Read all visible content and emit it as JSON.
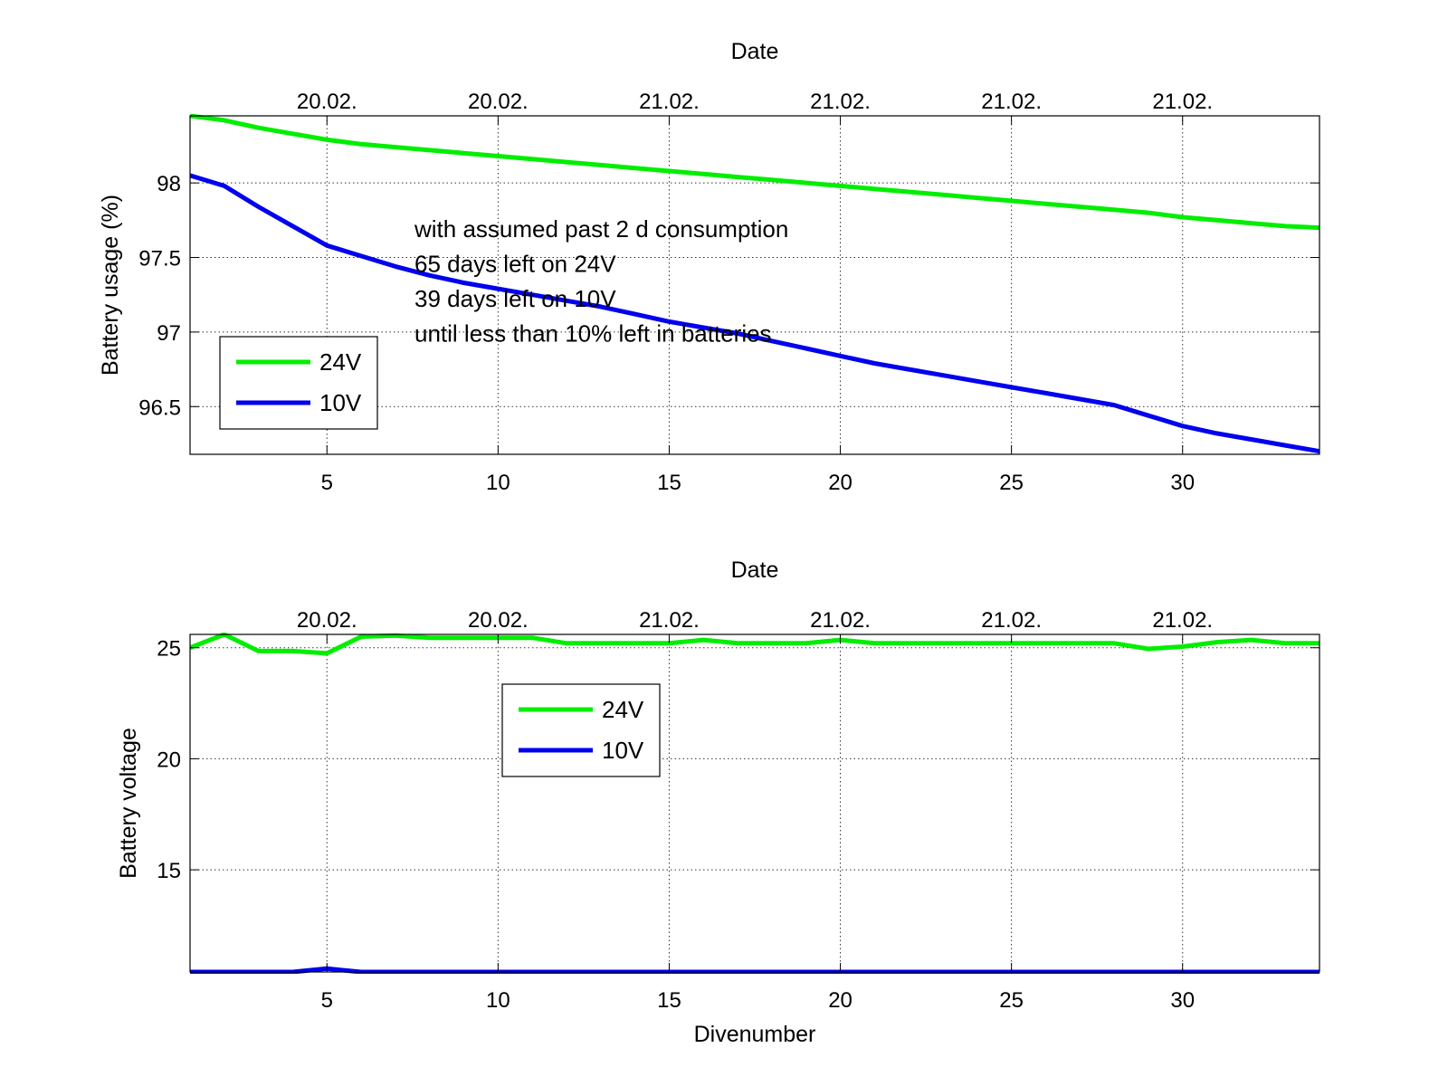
{
  "chart_data": [
    {
      "type": "line",
      "title": "",
      "top_axis_label": "Date",
      "top_tick_labels": [
        "20.02.",
        "20.02.",
        "21.02.",
        "21.02.",
        "21.02.",
        "21.02."
      ],
      "xlabel": "",
      "ylabel": "Battery usage (%)",
      "xlim": [
        1,
        34
      ],
      "ylim": [
        96.18,
        98.45
      ],
      "x_ticks": [
        5,
        10,
        15,
        20,
        25,
        30
      ],
      "y_ticks": [
        96.5,
        97,
        97.5,
        98
      ],
      "y_tick_labels": [
        "96.5",
        "97",
        "97.5",
        "98"
      ],
      "grid": true,
      "legend_position": "lower-left",
      "annotation_lines": [
        "with assumed past 2 d consumption",
        "65 days left on 24V",
        "39 days left on 10V",
        "until less than 10% left in batteries"
      ],
      "x": [
        1,
        2,
        3,
        4,
        5,
        6,
        7,
        8,
        9,
        10,
        11,
        12,
        13,
        14,
        15,
        16,
        17,
        18,
        19,
        20,
        21,
        22,
        23,
        24,
        25,
        26,
        27,
        28,
        29,
        30,
        31,
        32,
        33,
        34
      ],
      "series": [
        {
          "name": "24V",
          "color": "#00ee00",
          "values": [
            98.45,
            98.42,
            98.37,
            98.33,
            98.29,
            98.26,
            98.24,
            98.22,
            98.2,
            98.18,
            98.16,
            98.14,
            98.12,
            98.1,
            98.08,
            98.06,
            98.04,
            98.02,
            98.0,
            97.98,
            97.96,
            97.94,
            97.92,
            97.9,
            97.88,
            97.86,
            97.84,
            97.82,
            97.8,
            97.77,
            97.75,
            97.73,
            97.71,
            97.7
          ]
        },
        {
          "name": "10V",
          "color": "#0000ee",
          "values": [
            98.05,
            97.98,
            97.84,
            97.71,
            97.58,
            97.51,
            97.44,
            97.38,
            97.33,
            97.29,
            97.25,
            97.21,
            97.17,
            97.12,
            97.07,
            97.03,
            96.99,
            96.94,
            96.89,
            96.84,
            96.79,
            96.75,
            96.71,
            96.67,
            96.63,
            96.59,
            96.55,
            96.51,
            96.44,
            96.37,
            96.32,
            96.28,
            96.24,
            96.2
          ]
        }
      ]
    },
    {
      "type": "line",
      "title": "",
      "top_axis_label": "Date",
      "top_tick_labels": [
        "20.02.",
        "20.02.",
        "21.02.",
        "21.02.",
        "21.02.",
        "21.02."
      ],
      "xlabel": "Divenumber",
      "ylabel": "Battery voltage",
      "xlim": [
        1,
        34
      ],
      "ylim": [
        10.4,
        25.6
      ],
      "x_ticks": [
        5,
        10,
        15,
        20,
        25,
        30
      ],
      "y_ticks": [
        15,
        20,
        25
      ],
      "y_tick_labels": [
        "15",
        "20",
        "25"
      ],
      "grid": true,
      "legend_position": "upper-left",
      "x": [
        1,
        2,
        3,
        4,
        5,
        6,
        7,
        8,
        9,
        10,
        11,
        12,
        13,
        14,
        15,
        16,
        17,
        18,
        19,
        20,
        21,
        22,
        23,
        24,
        25,
        26,
        27,
        28,
        29,
        30,
        31,
        32,
        33,
        34
      ],
      "series": [
        {
          "name": "24V",
          "color": "#00ee00",
          "values": [
            25.0,
            25.6,
            24.85,
            24.85,
            24.75,
            25.5,
            25.55,
            25.45,
            25.45,
            25.45,
            25.45,
            25.2,
            25.2,
            25.2,
            25.2,
            25.35,
            25.2,
            25.2,
            25.2,
            25.35,
            25.2,
            25.2,
            25.2,
            25.2,
            25.2,
            25.2,
            25.2,
            25.2,
            24.95,
            25.05,
            25.25,
            25.35,
            25.2,
            25.2
          ]
        },
        {
          "name": "10V",
          "color": "#0000ee",
          "values": [
            10.4,
            10.4,
            10.4,
            10.4,
            10.55,
            10.4,
            10.4,
            10.4,
            10.4,
            10.4,
            10.4,
            10.4,
            10.4,
            10.4,
            10.4,
            10.4,
            10.4,
            10.4,
            10.4,
            10.4,
            10.4,
            10.4,
            10.4,
            10.4,
            10.4,
            10.4,
            10.4,
            10.4,
            10.4,
            10.4,
            10.4,
            10.4,
            10.4,
            10.4
          ]
        }
      ]
    }
  ]
}
